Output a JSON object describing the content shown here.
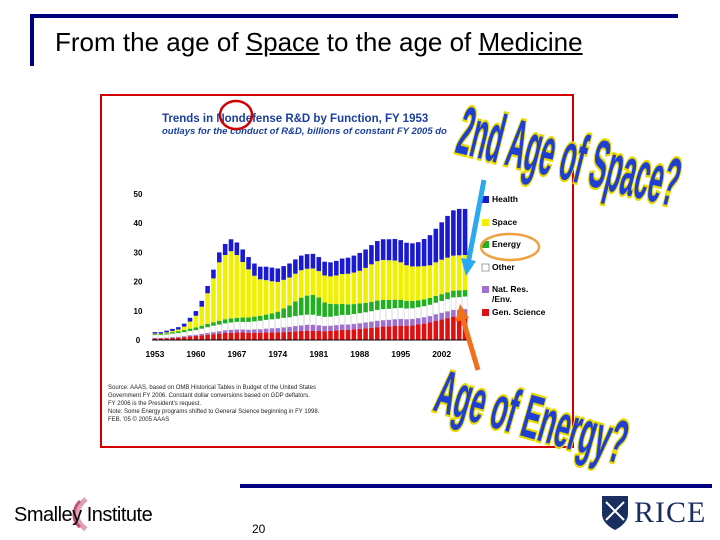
{
  "slide": {
    "title_prefix": "From the age of ",
    "title_word1": "Space",
    "title_middle": " to the age of ",
    "title_word2": "Medicine",
    "page_number": "20"
  },
  "annotations": {
    "space_question": "2nd Age of Space?",
    "energy_question": "Age of Energy?"
  },
  "logos": {
    "smalley": "Smalley Institute",
    "rice": "RICE"
  },
  "colors": {
    "health": "#1a1ad0",
    "space": "#f0f000",
    "energy": "#22b022",
    "other": "#ffffff",
    "natres": "#a070d0",
    "genscience": "#e01010",
    "arrow_blue": "#2aa8f0",
    "arrow_orange": "#f07020",
    "circle_red": "#d00000",
    "oval_orange": "#f0a040"
  },
  "chart_data": {
    "type": "bar",
    "stacked": true,
    "title": "Trends in Nondefense R&D by Function, FY 1953",
    "subtitle": "outlays for the conduct of R&D, billions of constant FY 2005 do",
    "ylim": [
      0,
      50
    ],
    "yticks": [
      0,
      10,
      20,
      30,
      40,
      50
    ],
    "xticks": [
      "1953",
      "1960",
      "1967",
      "1974",
      "1981",
      "1988",
      "1995",
      "2002"
    ],
    "years": [
      1953,
      1954,
      1955,
      1956,
      1957,
      1958,
      1959,
      1960,
      1961,
      1962,
      1963,
      1964,
      1965,
      1966,
      1967,
      1968,
      1969,
      1970,
      1971,
      1972,
      1973,
      1974,
      1975,
      1976,
      1977,
      1978,
      1979,
      1980,
      1981,
      1982,
      1983,
      1984,
      1985,
      1986,
      1987,
      1988,
      1989,
      1990,
      1991,
      1992,
      1993,
      1994,
      1995,
      1996,
      1997,
      1998,
      1999,
      2000,
      2001,
      2002,
      2003,
      2004,
      2005,
      2006
    ],
    "series": [
      {
        "name": "Gen. Science",
        "values": [
          0.5,
          0.5,
          0.6,
          0.7,
          0.8,
          1.0,
          1.2,
          1.4,
          1.6,
          1.8,
          2.0,
          2.2,
          2.4,
          2.5,
          2.6,
          2.6,
          2.5,
          2.5,
          2.5,
          2.6,
          2.6,
          2.6,
          2.7,
          2.8,
          3.0,
          3.1,
          3.2,
          3.2,
          3.1,
          3.0,
          3.1,
          3.3,
          3.5,
          3.5,
          3.7,
          3.8,
          4.0,
          4.2,
          4.4,
          4.6,
          4.7,
          4.8,
          4.9,
          4.9,
          5.0,
          5.3,
          5.6,
          6.0,
          6.5,
          7.0,
          7.5,
          8.0,
          8.2,
          8.4
        ]
      },
      {
        "name": "Nat. Res. /Env.",
        "values": [
          0.2,
          0.2,
          0.2,
          0.3,
          0.3,
          0.3,
          0.4,
          0.4,
          0.5,
          0.6,
          0.7,
          0.8,
          0.9,
          1.0,
          1.0,
          1.0,
          1.0,
          1.1,
          1.2,
          1.3,
          1.4,
          1.5,
          1.6,
          1.7,
          1.8,
          1.9,
          2.0,
          2.0,
          1.9,
          1.8,
          1.8,
          1.8,
          1.8,
          1.8,
          1.8,
          1.9,
          2.0,
          2.1,
          2.2,
          2.2,
          2.2,
          2.3,
          2.3,
          2.2,
          2.2,
          2.2,
          2.2,
          2.2,
          2.3,
          2.3,
          2.3,
          2.3,
          2.2,
          2.2
        ]
      },
      {
        "name": "Other",
        "values": [
          1.0,
          1.0,
          1.1,
          1.2,
          1.3,
          1.4,
          1.5,
          1.6,
          1.8,
          2.0,
          2.2,
          2.3,
          2.4,
          2.5,
          2.6,
          2.6,
          2.7,
          2.8,
          2.9,
          3.0,
          3.1,
          3.2,
          3.3,
          3.3,
          3.4,
          3.5,
          3.5,
          3.5,
          3.3,
          3.1,
          3.1,
          3.2,
          3.3,
          3.3,
          3.4,
          3.5,
          3.5,
          3.6,
          3.7,
          3.8,
          3.8,
          3.8,
          3.8,
          3.7,
          3.7,
          3.7,
          3.8,
          3.9,
          4.0,
          4.1,
          4.2,
          4.3,
          4.3,
          4.3
        ]
      },
      {
        "name": "Energy",
        "values": [
          0.3,
          0.3,
          0.4,
          0.5,
          0.6,
          0.7,
          0.8,
          0.9,
          1.0,
          1.1,
          1.2,
          1.3,
          1.4,
          1.4,
          1.4,
          1.5,
          1.5,
          1.6,
          1.7,
          1.8,
          2.0,
          2.4,
          3.2,
          4.0,
          5.0,
          6.0,
          6.5,
          6.8,
          6.3,
          5.0,
          4.4,
          4.0,
          3.8,
          3.6,
          3.4,
          3.3,
          3.2,
          3.2,
          3.2,
          3.1,
          3.0,
          2.9,
          2.8,
          2.6,
          2.5,
          2.4,
          2.3,
          2.3,
          2.3,
          2.3,
          2.3,
          2.3,
          2.3,
          2.2
        ]
      },
      {
        "name": "Space",
        "values": [
          0.2,
          0.2,
          0.3,
          0.4,
          0.6,
          1.2,
          2.4,
          4.0,
          6.5,
          10.5,
          15.0,
          20.0,
          22.0,
          23.0,
          21.5,
          19.0,
          16.5,
          14.0,
          12.5,
          11.8,
          11.0,
          10.2,
          9.8,
          9.6,
          9.5,
          9.4,
          9.2,
          9.0,
          9.0,
          9.2,
          9.4,
          9.8,
          10.2,
          10.5,
          10.8,
          11.2,
          12.0,
          12.8,
          13.5,
          13.7,
          13.6,
          13.4,
          12.8,
          12.2,
          11.8,
          11.6,
          11.4,
          11.2,
          11.5,
          11.8,
          11.9,
          12.0,
          12.0,
          12.0
        ]
      },
      {
        "name": "Health",
        "values": [
          0.5,
          0.5,
          0.6,
          0.7,
          0.8,
          1.0,
          1.3,
          1.6,
          2.0,
          2.5,
          3.0,
          3.4,
          3.8,
          4.1,
          4.3,
          4.3,
          4.2,
          4.2,
          4.3,
          4.6,
          4.7,
          4.6,
          4.7,
          4.8,
          4.9,
          5.0,
          5.0,
          5.0,
          4.8,
          4.7,
          4.8,
          5.0,
          5.3,
          5.5,
          5.8,
          6.1,
          6.3,
          6.6,
          6.9,
          7.1,
          7.2,
          7.4,
          7.6,
          7.7,
          7.9,
          8.3,
          9.3,
          10.3,
          11.5,
          12.8,
          14.3,
          15.5,
          15.9,
          15.8
        ]
      }
    ],
    "legend": {
      "position": "right",
      "entries": [
        "Health",
        "Space",
        "Energy",
        "Other",
        "Nat. Res. /Env.",
        "Gen. Science"
      ]
    },
    "source_lines": [
      "Source: AAAS, based on OMB Historical Tables in Budget of the United States",
      "Government FY 2006. Constant dollar conversions based on GDP deflators.",
      "FY 2006 is the President's request.",
      "Note: Some Energy programs shifted to General Science beginning in FY 1998.",
      "FEB. '05 © 2005 AAAS"
    ]
  }
}
